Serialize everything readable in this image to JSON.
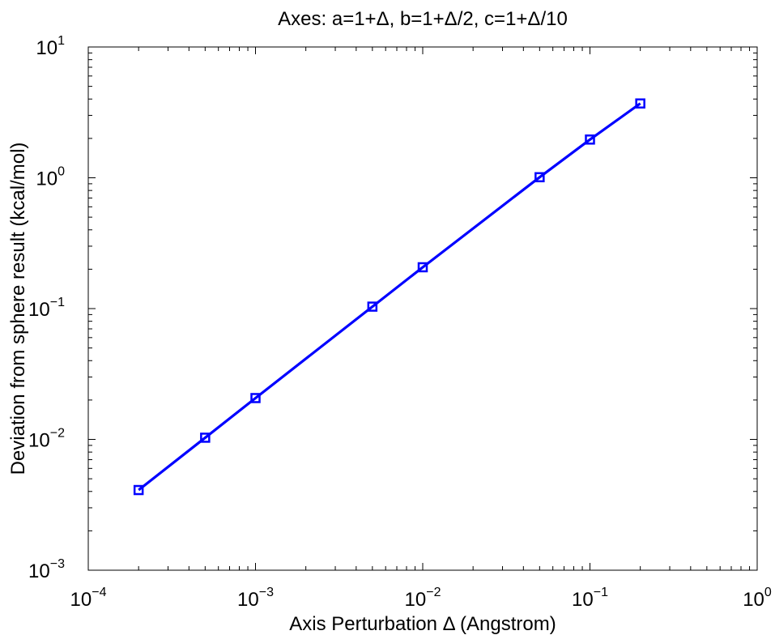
{
  "chart_data": {
    "type": "line",
    "title": "Axes: a=1+Δ, b=1+Δ/2, c=1+Δ/10",
    "xlabel": "Axis Perturbation Δ (Angstrom)",
    "ylabel": "Deviation from sphere result (kcal/mol)",
    "xscale": "log",
    "yscale": "log",
    "xlim": [
      0.0001,
      1
    ],
    "ylim": [
      0.001,
      10
    ],
    "grid": false,
    "x_ticks": [
      {
        "value": 0.0001,
        "base": "10",
        "exp": "−4"
      },
      {
        "value": 0.001,
        "base": "10",
        "exp": "−3"
      },
      {
        "value": 0.01,
        "base": "10",
        "exp": "−2"
      },
      {
        "value": 0.1,
        "base": "10",
        "exp": "−1"
      },
      {
        "value": 1,
        "base": "10",
        "exp": "0"
      }
    ],
    "y_ticks": [
      {
        "value": 0.001,
        "base": "10",
        "exp": "−3"
      },
      {
        "value": 0.01,
        "base": "10",
        "exp": "−2"
      },
      {
        "value": 0.1,
        "base": "10",
        "exp": "−1"
      },
      {
        "value": 1,
        "base": "10",
        "exp": "0"
      },
      {
        "value": 10,
        "base": "10",
        "exp": "1"
      }
    ],
    "series": [
      {
        "color": "#0000ff",
        "marker": "square",
        "x": [
          0.0002,
          0.0005,
          0.001,
          0.005,
          0.01,
          0.05,
          0.1,
          0.2
        ],
        "y": [
          0.0041,
          0.0103,
          0.0207,
          0.1035,
          0.207,
          1.01,
          1.96,
          3.7
        ]
      }
    ]
  }
}
